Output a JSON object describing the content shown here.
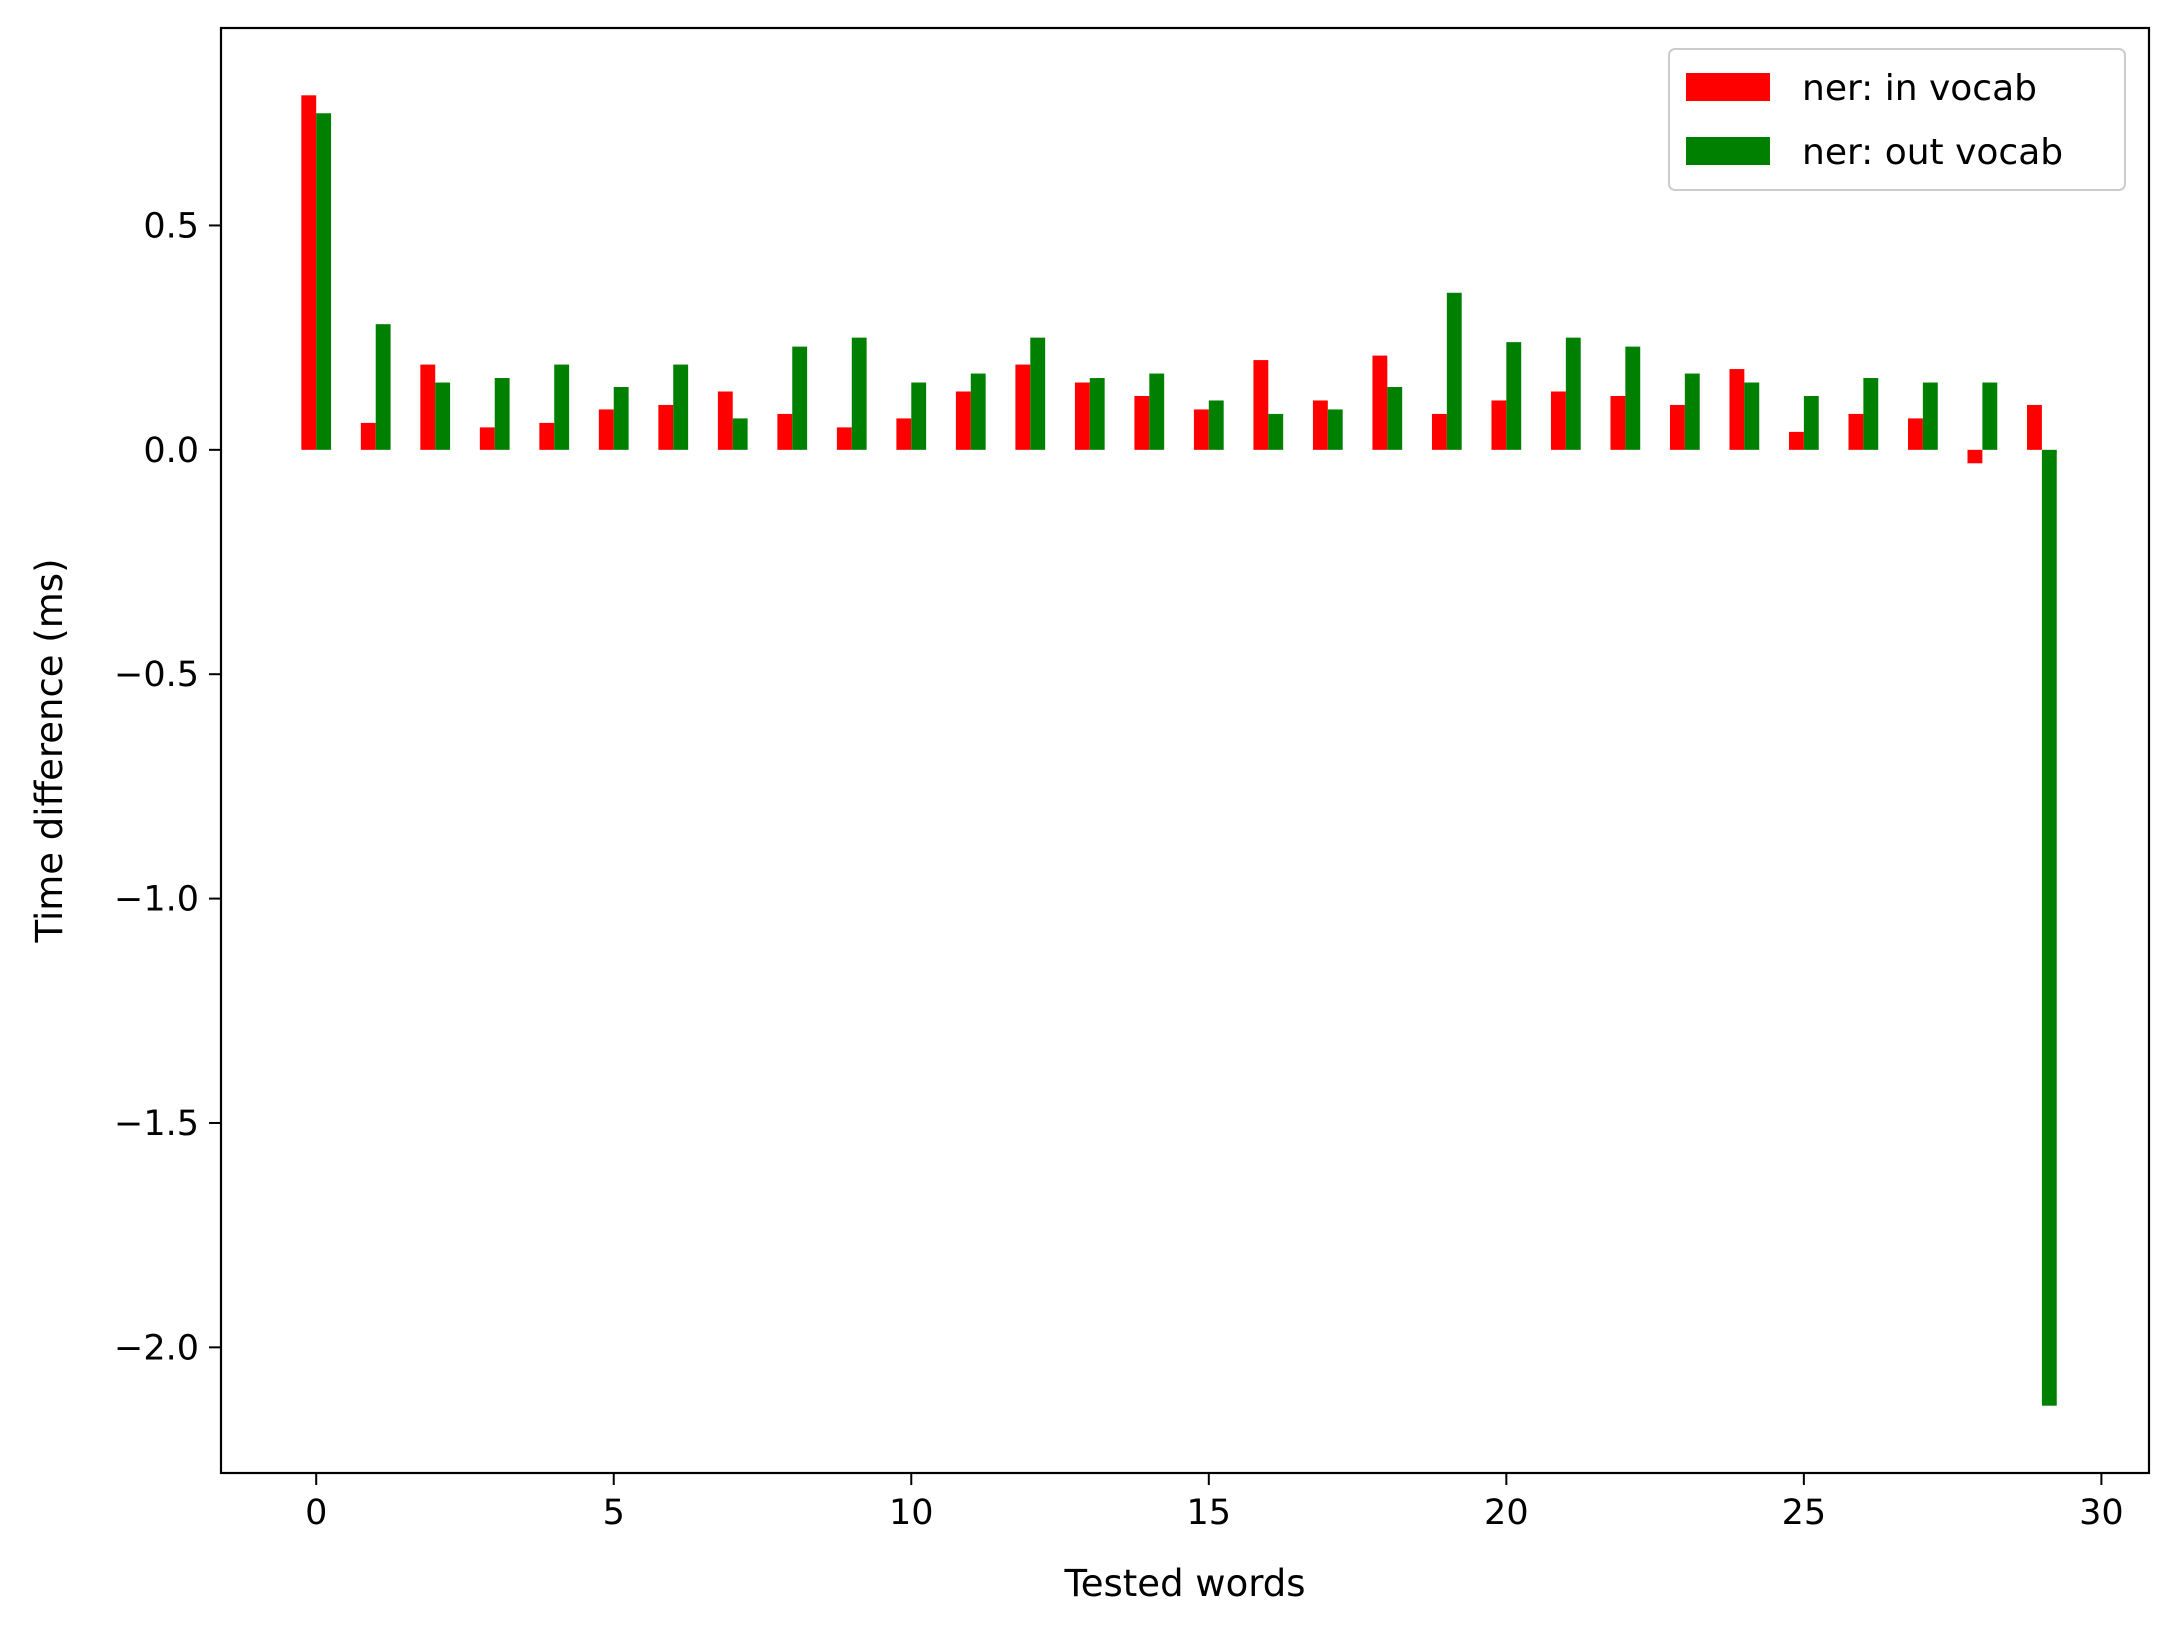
{
  "chart_data": {
    "type": "bar",
    "xlabel": "Tested words",
    "ylabel": "Time difference (ms)",
    "xlim": [
      -1.6,
      30.8
    ],
    "ylim": [
      -2.28,
      0.94
    ],
    "xticks": [
      0,
      5,
      10,
      15,
      20,
      25,
      30
    ],
    "xtick_labels": [
      "0",
      "5",
      "10",
      "15",
      "20",
      "25",
      "30"
    ],
    "yticks": [
      0.5,
      0.0,
      -0.5,
      -1.0,
      -1.5,
      -2.0
    ],
    "ytick_labels": [
      "0.5",
      "0.0",
      "−0.5",
      "−1.0",
      "−1.5",
      "−2.0"
    ],
    "legend_position": "top-right",
    "x": [
      0,
      1,
      2,
      3,
      4,
      5,
      6,
      7,
      8,
      9,
      10,
      11,
      12,
      13,
      14,
      15,
      16,
      17,
      18,
      19,
      20,
      21,
      22,
      23,
      24,
      25,
      26,
      27,
      28,
      29
    ],
    "series": [
      {
        "name": "ner: in vocab",
        "color": "#ff0000",
        "values": [
          0.79,
          0.06,
          0.19,
          0.05,
          0.06,
          0.09,
          0.1,
          0.13,
          0.08,
          0.05,
          0.07,
          0.13,
          0.19,
          0.15,
          0.12,
          0.09,
          0.2,
          0.11,
          0.21,
          0.08,
          0.11,
          0.13,
          0.12,
          0.1,
          0.18,
          0.04,
          0.08,
          0.07,
          -0.03,
          0.1
        ]
      },
      {
        "name": "ner: out vocab",
        "color": "#008000",
        "values": [
          0.75,
          0.28,
          0.15,
          0.16,
          0.19,
          0.14,
          0.19,
          0.07,
          0.23,
          0.25,
          0.15,
          0.17,
          0.25,
          0.16,
          0.17,
          0.11,
          0.08,
          0.09,
          0.14,
          0.35,
          0.24,
          0.25,
          0.23,
          0.17,
          0.15,
          0.12,
          0.16,
          0.15,
          0.15,
          -2.13
        ]
      }
    ]
  }
}
